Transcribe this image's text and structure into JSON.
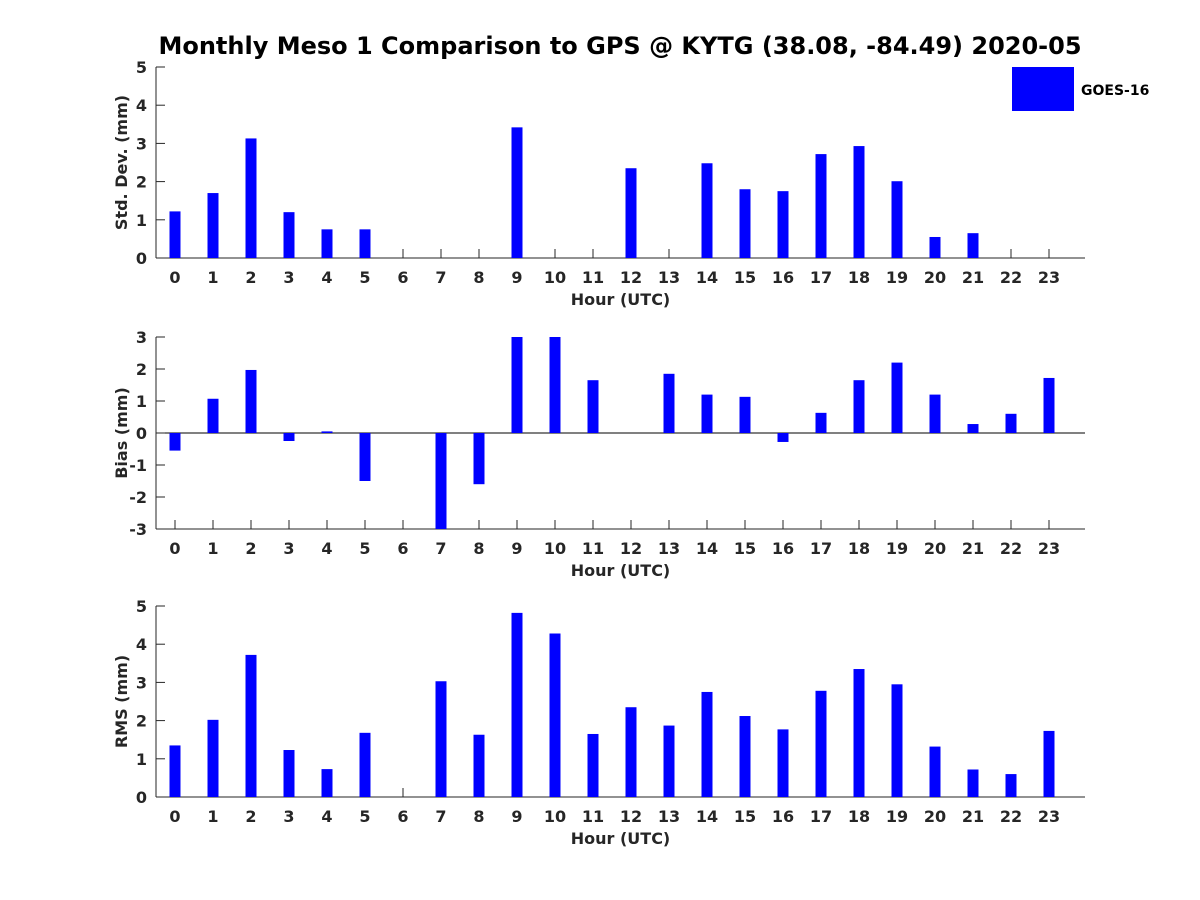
{
  "chart_data": {
    "type": "bar",
    "title": "Monthly Meso 1 Comparison to GPS @ KYTG (38.08, -84.49) 2020-05",
    "legend": {
      "placement": "top-right",
      "entries": [
        {
          "name": "GOES-16",
          "color": "#0000ff"
        }
      ]
    },
    "categories": [
      "0",
      "1",
      "2",
      "3",
      "4",
      "5",
      "6",
      "7",
      "8",
      "9",
      "10",
      "11",
      "12",
      "13",
      "14",
      "15",
      "16",
      "17",
      "18",
      "19",
      "20",
      "21",
      "22",
      "23"
    ],
    "panels": [
      {
        "id": "std",
        "ylabel": "Std. Dev. (mm)",
        "xlabel": "Hour (UTC)",
        "ylim": [
          0,
          5
        ],
        "yticks": [
          "0",
          "1",
          "2",
          "3",
          "4",
          "5"
        ],
        "series": [
          {
            "name": "GOES-16",
            "color": "#0000ff",
            "values": [
              1.22,
              1.7,
              3.13,
              1.2,
              0.75,
              0.75,
              null,
              null,
              null,
              3.42,
              null,
              null,
              2.35,
              null,
              2.48,
              1.8,
              1.75,
              2.72,
              2.93,
              2.01,
              0.55,
              0.65,
              null,
              null
            ]
          }
        ]
      },
      {
        "id": "bias",
        "ylabel": "Bias (mm)",
        "xlabel": "Hour (UTC)",
        "ylim": [
          -3,
          3
        ],
        "yticks": [
          "-3",
          "-2",
          "-1",
          "0",
          "1",
          "2",
          "3"
        ],
        "series": [
          {
            "name": "GOES-16",
            "color": "#0000ff",
            "values": [
              -0.55,
              1.07,
              1.97,
              -0.25,
              0.05,
              -1.5,
              null,
              -3.0,
              -1.6,
              3.0,
              3.0,
              1.65,
              null,
              1.85,
              1.2,
              1.13,
              -0.28,
              0.63,
              1.65,
              2.2,
              1.2,
              0.28,
              0.6,
              1.72
            ]
          }
        ]
      },
      {
        "id": "rms",
        "ylabel": "RMS (mm)",
        "xlabel": "Hour (UTC)",
        "ylim": [
          0,
          5
        ],
        "yticks": [
          "0",
          "1",
          "2",
          "3",
          "4",
          "5"
        ],
        "series": [
          {
            "name": "GOES-16",
            "color": "#0000ff",
            "values": [
              1.35,
              2.02,
              3.72,
              1.23,
              0.73,
              1.68,
              null,
              3.03,
              1.63,
              4.82,
              4.28,
              1.65,
              2.35,
              1.87,
              2.75,
              2.12,
              1.77,
              2.78,
              3.35,
              2.95,
              1.32,
              0.72,
              0.6,
              1.73
            ]
          }
        ]
      }
    ]
  }
}
